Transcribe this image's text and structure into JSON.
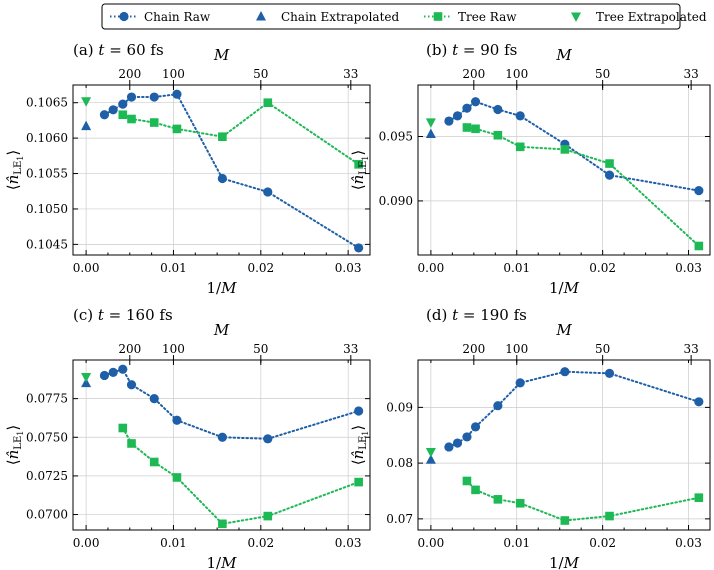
{
  "colors": {
    "chain": "#1f5fa8",
    "tree": "#1db954"
  },
  "legend": [
    {
      "label": "Chain Raw",
      "kind": "line-circle",
      "color": "#1f5fa8"
    },
    {
      "label": "Chain Extrapolated",
      "kind": "triangle-up",
      "color": "#1f5fa8"
    },
    {
      "label": "Tree Raw",
      "kind": "line-square",
      "color": "#1db954"
    },
    {
      "label": "Tree Extrapolated",
      "kind": "triangle-down",
      "color": "#1db954"
    }
  ],
  "chart_data": [
    {
      "type": "line",
      "title": "(a) t = 60 fs",
      "title_prefix": "(a)",
      "title_var": "t",
      "title_rest": " = 60 fs",
      "xlabel": "1/M",
      "ylabel": "⟨n̂LE1⟩",
      "top_label": "M",
      "xlim": [
        -0.0015,
        0.0325
      ],
      "ylim": [
        0.10435,
        0.10675
      ],
      "xticks": [
        0.0,
        0.01,
        0.02,
        0.03
      ],
      "xtick_labels": [
        "0.00",
        "0.01",
        "0.02",
        "0.03"
      ],
      "yticks": [
        0.1045,
        0.105,
        0.1055,
        0.106,
        0.1065
      ],
      "ytick_labels": [
        "0.1045",
        "0.1050",
        "0.1055",
        "0.1060",
        "0.1065"
      ],
      "top_ticks": [
        200,
        100,
        50,
        33
      ],
      "top_tick_labels": [
        "200",
        "100",
        "50",
        "33"
      ],
      "series": [
        {
          "name": "Chain Raw",
          "x": [
            0.0021,
            0.0031,
            0.0042,
            0.0052,
            0.0078,
            0.0104,
            0.0156,
            0.0208,
            0.0312
          ],
          "y": [
            0.10633,
            0.1064,
            0.10648,
            0.10658,
            0.10658,
            0.10662,
            0.10543,
            0.10524,
            0.10445
          ]
        },
        {
          "name": "Chain Extrapolated",
          "x": [
            0.0
          ],
          "y": [
            0.10617
          ]
        },
        {
          "name": "Tree Raw",
          "x": [
            0.0042,
            0.0052,
            0.0078,
            0.0104,
            0.0156,
            0.0208,
            0.0312
          ],
          "y": [
            0.10633,
            0.10627,
            0.10622,
            0.10613,
            0.10602,
            0.1065,
            0.10563
          ]
        },
        {
          "name": "Tree Extrapolated",
          "x": [
            0.0
          ],
          "y": [
            0.10652
          ]
        }
      ]
    },
    {
      "type": "line",
      "title": "(b) t = 90 fs",
      "title_prefix": "(b)",
      "title_var": "t",
      "title_rest": " = 90 fs",
      "xlabel": "1/M",
      "ylabel": "⟨n̂LE1⟩",
      "top_label": "M",
      "xlim": [
        -0.0015,
        0.0325
      ],
      "ylim": [
        0.0858,
        0.099
      ],
      "xticks": [
        0.0,
        0.01,
        0.02,
        0.03
      ],
      "xtick_labels": [
        "0.00",
        "0.01",
        "0.02",
        "0.03"
      ],
      "yticks": [
        0.09,
        0.095
      ],
      "ytick_labels": [
        "0.090",
        "0.095"
      ],
      "top_ticks": [
        200,
        100,
        50,
        33
      ],
      "top_tick_labels": [
        "200",
        "100",
        "50",
        "33"
      ],
      "series": [
        {
          "name": "Chain Raw",
          "x": [
            0.0021,
            0.0031,
            0.0042,
            0.0052,
            0.0078,
            0.0104,
            0.0156,
            0.0208,
            0.0312
          ],
          "y": [
            0.0962,
            0.0966,
            0.0972,
            0.0977,
            0.0971,
            0.0966,
            0.0944,
            0.092,
            0.0908
          ]
        },
        {
          "name": "Chain Extrapolated",
          "x": [
            0.0
          ],
          "y": [
            0.0952
          ]
        },
        {
          "name": "Tree Raw",
          "x": [
            0.0042,
            0.0052,
            0.0078,
            0.0104,
            0.0156,
            0.0208,
            0.0312
          ],
          "y": [
            0.0957,
            0.0956,
            0.0951,
            0.0942,
            0.094,
            0.0929,
            0.0865
          ]
        },
        {
          "name": "Tree Extrapolated",
          "x": [
            0.0
          ],
          "y": [
            0.0961
          ]
        }
      ]
    },
    {
      "type": "line",
      "title": "(c) t = 160 fs",
      "title_prefix": "(c)",
      "title_var": "t",
      "title_rest": " = 160 fs",
      "xlabel": "1/M",
      "ylabel": "⟨n̂LE1⟩",
      "top_label": "M",
      "xlim": [
        -0.0015,
        0.0325
      ],
      "ylim": [
        0.069,
        0.08
      ],
      "xticks": [
        0.0,
        0.01,
        0.02,
        0.03
      ],
      "xtick_labels": [
        "0.00",
        "0.01",
        "0.02",
        "0.03"
      ],
      "yticks": [
        0.07,
        0.0725,
        0.075,
        0.0775
      ],
      "ytick_labels": [
        "0.0700",
        "0.0725",
        "0.0750",
        "0.0775"
      ],
      "top_ticks": [
        200,
        100,
        50,
        33
      ],
      "top_tick_labels": [
        "200",
        "100",
        "50",
        "33"
      ],
      "series": [
        {
          "name": "Chain Raw",
          "x": [
            0.0021,
            0.0031,
            0.0042,
            0.0052,
            0.0078,
            0.0104,
            0.0156,
            0.0208,
            0.0312
          ],
          "y": [
            0.079,
            0.0792,
            0.0794,
            0.0784,
            0.0775,
            0.0761,
            0.075,
            0.0749,
            0.0767
          ]
        },
        {
          "name": "Chain Extrapolated",
          "x": [
            0.0
          ],
          "y": [
            0.0785
          ]
        },
        {
          "name": "Tree Raw",
          "x": [
            0.0042,
            0.0052,
            0.0078,
            0.0104,
            0.0156,
            0.0208,
            0.0312
          ],
          "y": [
            0.0756,
            0.0746,
            0.0734,
            0.0724,
            0.0694,
            0.0699,
            0.0721
          ]
        },
        {
          "name": "Tree Extrapolated",
          "x": [
            0.0
          ],
          "y": [
            0.0789
          ]
        }
      ]
    },
    {
      "type": "line",
      "title": "(d) t = 190 fs",
      "title_prefix": "(d)",
      "title_var": "t",
      "title_rest": " = 190 fs",
      "xlabel": "1/M",
      "ylabel": "⟨n̂LE1⟩",
      "top_label": "M",
      "xlim": [
        -0.0015,
        0.0325
      ],
      "ylim": [
        0.068,
        0.0985
      ],
      "xticks": [
        0.0,
        0.01,
        0.02,
        0.03
      ],
      "xtick_labels": [
        "0.00",
        "0.01",
        "0.02",
        "0.03"
      ],
      "yticks": [
        0.07,
        0.08,
        0.09
      ],
      "ytick_labels": [
        "0.07",
        "0.08",
        "0.09"
      ],
      "top_ticks": [
        200,
        100,
        50,
        33
      ],
      "top_tick_labels": [
        "200",
        "100",
        "50",
        "33"
      ],
      "series": [
        {
          "name": "Chain Raw",
          "x": [
            0.0021,
            0.0031,
            0.0042,
            0.0052,
            0.0078,
            0.0104,
            0.0156,
            0.0208,
            0.0312
          ],
          "y": [
            0.0829,
            0.0836,
            0.0847,
            0.0865,
            0.0903,
            0.0944,
            0.0964,
            0.0961,
            0.091
          ]
        },
        {
          "name": "Chain Extrapolated",
          "x": [
            0.0
          ],
          "y": [
            0.0806
          ]
        },
        {
          "name": "Tree Raw",
          "x": [
            0.0042,
            0.0052,
            0.0078,
            0.0104,
            0.0156,
            0.0208,
            0.0312
          ],
          "y": [
            0.0768,
            0.0752,
            0.0735,
            0.0728,
            0.0697,
            0.0705,
            0.0738
          ]
        },
        {
          "name": "Tree Extrapolated",
          "x": [
            0.0
          ],
          "y": [
            0.082
          ]
        }
      ]
    }
  ]
}
